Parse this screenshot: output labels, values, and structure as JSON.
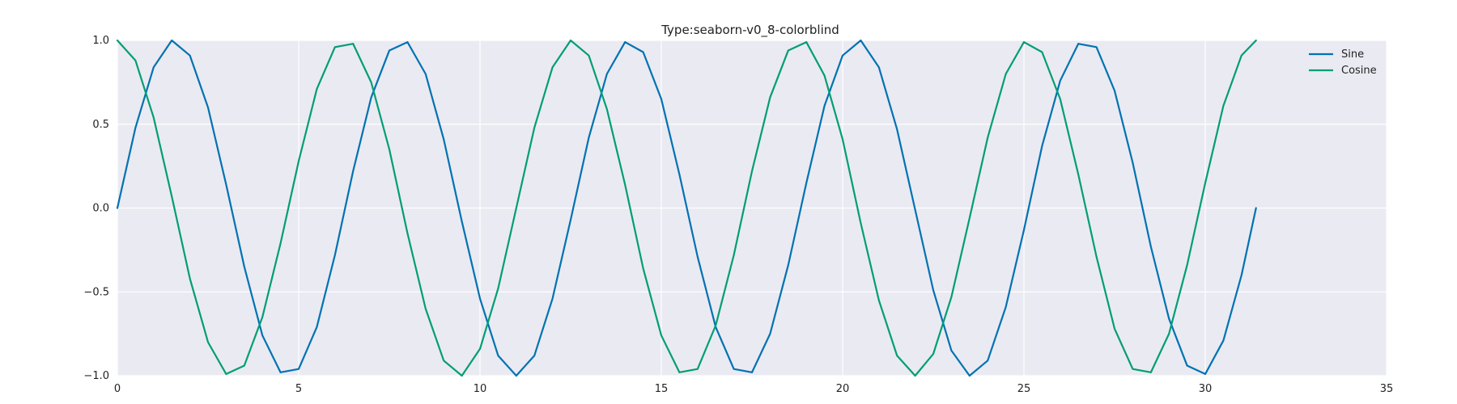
{
  "chart_data": {
    "type": "line",
    "title": "Type:seaborn-v0_8-colorblind",
    "xlabel": "",
    "ylabel": "",
    "xlim": [
      0,
      35
    ],
    "ylim": [
      -1.0,
      1.0
    ],
    "xticks": [
      0,
      5,
      10,
      15,
      20,
      25,
      30,
      35
    ],
    "xtick_labels": [
      "0",
      "5",
      "10",
      "15",
      "20",
      "25",
      "30",
      "35"
    ],
    "yticks": [
      -1.0,
      -0.5,
      0.0,
      0.5,
      1.0
    ],
    "ytick_labels": [
      "−1.0",
      "−0.5",
      "0.0",
      "0.5",
      "1.0"
    ],
    "grid": true,
    "legend_position": "top-right",
    "x": [
      0,
      0.5,
      1,
      1.5,
      2,
      2.5,
      3,
      3.5,
      4,
      4.5,
      5,
      5.5,
      6,
      6.5,
      7,
      7.5,
      8,
      8.5,
      9,
      9.5,
      10,
      10.5,
      11,
      11.5,
      12,
      12.5,
      13,
      13.5,
      14,
      14.5,
      15,
      15.5,
      16,
      16.5,
      17,
      17.5,
      18,
      18.5,
      19,
      19.5,
      20,
      20.5,
      21,
      21.5,
      22,
      22.5,
      23,
      23.5,
      24,
      24.5,
      25,
      25.5,
      26,
      26.5,
      27,
      27.5,
      28,
      28.5,
      29,
      29.5,
      30,
      30.5,
      31,
      31.4
    ],
    "series": [
      {
        "name": "Sine",
        "color": "#0072B2",
        "values": [
          0.0,
          0.48,
          0.84,
          1.0,
          0.91,
          0.6,
          0.14,
          -0.35,
          -0.76,
          -0.98,
          -0.96,
          -0.71,
          -0.28,
          0.22,
          0.66,
          0.94,
          0.99,
          0.8,
          0.41,
          -0.08,
          -0.54,
          -0.88,
          -1.0,
          -0.88,
          -0.54,
          -0.07,
          0.42,
          0.8,
          0.99,
          0.93,
          0.65,
          0.2,
          -0.29,
          -0.71,
          -0.96,
          -0.98,
          -0.75,
          -0.34,
          0.15,
          0.61,
          0.91,
          1.0,
          0.84,
          0.47,
          -0.01,
          -0.49,
          -0.85,
          -1.0,
          -0.91,
          -0.59,
          -0.13,
          0.37,
          0.76,
          0.98,
          0.96,
          0.7,
          0.27,
          -0.23,
          -0.66,
          -0.94,
          -0.99,
          -0.79,
          -0.4,
          0.0
        ]
      },
      {
        "name": "Cosine",
        "color": "#009E73",
        "values": [
          1.0,
          0.88,
          0.54,
          0.07,
          -0.42,
          -0.8,
          -0.99,
          -0.94,
          -0.65,
          -0.21,
          0.28,
          0.71,
          0.96,
          0.98,
          0.75,
          0.35,
          -0.15,
          -0.6,
          -0.91,
          -1.0,
          -0.84,
          -0.48,
          0.0,
          0.48,
          0.84,
          1.0,
          0.91,
          0.59,
          0.14,
          -0.36,
          -0.76,
          -0.98,
          -0.96,
          -0.7,
          -0.28,
          0.22,
          0.66,
          0.94,
          0.99,
          0.79,
          0.41,
          -0.09,
          -0.55,
          -0.88,
          -1.0,
          -0.87,
          -0.53,
          -0.06,
          0.42,
          0.8,
          0.99,
          0.93,
          0.65,
          0.2,
          -0.29,
          -0.72,
          -0.96,
          -0.98,
          -0.75,
          -0.34,
          0.15,
          0.61,
          0.91,
          1.0
        ]
      }
    ],
    "colors": {
      "plot_background": "#EAEAF2",
      "grid": "#FFFFFF",
      "text": "#222222"
    }
  }
}
